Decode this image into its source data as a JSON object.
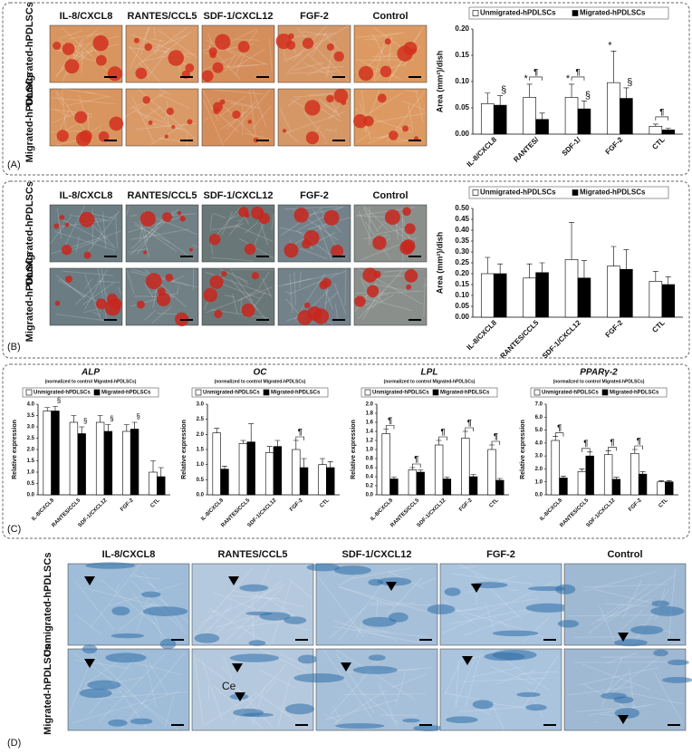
{
  "panels": [
    {
      "label": "(A)",
      "columns": [
        "IL-8/CXCL8",
        "RANTES/CCL5",
        "SDF-1/CXCL12",
        "FGF-2",
        "Control"
      ],
      "rows": [
        "Unmigrated-hPDLSCs",
        "Migrated-hPDLSCs"
      ]
    },
    {
      "label": "(B)",
      "columns": [
        "IL-8/CXCL8",
        "RANTES/CCL5",
        "SDF-1/CXCL12",
        "FGF-2",
        "Control"
      ],
      "rows": [
        "Unmigrated-hPDLSCs",
        "Migrated-hPDLSCs"
      ]
    },
    {
      "label": "(C)"
    },
    {
      "label": "(D)",
      "columns": [
        "IL-8/CXCL8",
        "RANTES/CCL5",
        "SDF-1/CXCL12",
        "FGF-2",
        "Control"
      ],
      "rows": [
        "Unmigrated-hPDLSCs",
        "Migrated-hPDLSCs"
      ],
      "annotation": "Ce"
    }
  ],
  "chart_data": [
    {
      "type": "bar",
      "ylabel": "Area (mm²)/dish",
      "categories": [
        "IL-8/CXCL8",
        "RANTES/",
        "SDF-1/",
        "FGF-2",
        "CTL"
      ],
      "series": [
        {
          "name": "Unmigrated-hPDLSCs",
          "color": "#ffffff",
          "values": [
            0.058,
            0.07,
            0.07,
            0.098,
            0.015
          ],
          "errors": [
            0.02,
            0.025,
            0.025,
            0.06,
            0.004
          ],
          "annotations": [
            null,
            "*",
            "*",
            "*",
            null
          ]
        },
        {
          "name": "Migrated-hPDLSCs",
          "color": "#000000",
          "values": [
            0.055,
            0.028,
            0.048,
            0.068,
            0.008
          ],
          "errors": [
            0.018,
            0.012,
            0.015,
            0.02,
            0.003
          ],
          "annotations": [
            "§",
            null,
            "§",
            "§",
            null
          ]
        }
      ],
      "pair_annotations": [
        null,
        "¶",
        "¶",
        null,
        "¶"
      ],
      "ylim": [
        0,
        0.2
      ],
      "yticks": [
        {
          "value": 0,
          "label": "0.00"
        },
        0.05,
        {
          "value": 0.1,
          "label": "0.10"
        },
        0.15,
        {
          "value": 0.2,
          "label": "0.20"
        }
      ]
    },
    {
      "type": "bar",
      "ylabel": "Area (mm²)/dish",
      "categories": [
        "IL-8/CXCL8",
        "RANTES/CCL5",
        "SDF-1/CXCL12",
        "FGF-2",
        "CTL"
      ],
      "series": [
        {
          "name": "Unmigrated-hPDLSCs",
          "color": "#ffffff",
          "values": [
            0.2,
            0.18,
            0.265,
            0.235,
            0.165
          ],
          "errors": [
            0.075,
            0.065,
            0.17,
            0.09,
            0.045
          ]
        },
        {
          "name": "Migrated-hPDLSCs",
          "color": "#000000",
          "values": [
            0.2,
            0.205,
            0.18,
            0.22,
            0.15
          ],
          "errors": [
            0.045,
            0.045,
            0.08,
            0.09,
            0.035
          ]
        }
      ],
      "ylim": [
        0,
        0.5
      ],
      "yticks": [
        {
          "value": 0,
          "label": "0.00"
        },
        0.05,
        {
          "value": 0.1,
          "label": "0.10"
        },
        0.15,
        {
          "value": 0.2,
          "label": "0.20"
        },
        0.25,
        {
          "value": 0.3,
          "label": "0.30"
        },
        0.35,
        {
          "value": 0.4,
          "label": "0.40"
        },
        0.45,
        {
          "value": 0.5,
          "label": "0.50"
        }
      ]
    },
    {
      "type": "bar",
      "title": "ALP",
      "subtitle": "(normalized to control Migrated-hPDLSCs)",
      "ylabel": "Relative expression",
      "categories": [
        "IL-8/CXCL8",
        "RANTES/CCL5",
        "SDF-1/CXCL12",
        "FGF-2",
        "CTL"
      ],
      "series": [
        {
          "name": "Unmigrated-hPDLSCs",
          "color": "#ffffff",
          "values": [
            3.7,
            3.2,
            3.2,
            2.8,
            1.0
          ],
          "errors": [
            0.15,
            0.3,
            0.3,
            0.3,
            0.5
          ]
        },
        {
          "name": "Migrated-hPDLSCs",
          "color": "#000000",
          "values": [
            3.7,
            2.7,
            2.8,
            2.9,
            0.8
          ],
          "errors": [
            0.2,
            0.3,
            0.3,
            0.3,
            0.4
          ],
          "annotations": [
            "§",
            "§",
            "§",
            "§",
            null
          ]
        }
      ],
      "ylim": [
        0,
        4.0
      ],
      "yticks": [
        {
          "value": 0,
          "label": "0.0"
        },
        0.5,
        {
          "value": 1,
          "label": "1.0"
        },
        1.5,
        {
          "value": 2,
          "label": "2.0"
        },
        2.5,
        {
          "value": 3,
          "label": "3.0"
        },
        3.5,
        {
          "value": 4,
          "label": "4.0"
        }
      ]
    },
    {
      "type": "bar",
      "title": "OC",
      "subtitle": "(normalized to control Migrated-hPDLSCs)",
      "ylabel": "Relative expression",
      "categories": [
        "IL-8/CXCL8",
        "RANTES/CCL5",
        "SDF-1/CXCL12",
        "FGF-2",
        "CTL"
      ],
      "series": [
        {
          "name": "Unmigrated-hPDLSCs",
          "color": "#ffffff",
          "values": [
            2.05,
            1.7,
            1.4,
            1.5,
            1.0
          ],
          "errors": [
            0.15,
            0.1,
            0.2,
            0.3,
            0.2
          ]
        },
        {
          "name": "Migrated-hPDLSCs",
          "color": "#000000",
          "values": [
            0.85,
            1.75,
            1.6,
            0.9,
            0.9
          ],
          "errors": [
            0.1,
            0.6,
            0.2,
            0.3,
            0.2
          ]
        }
      ],
      "pair_annotations": [
        null,
        null,
        null,
        "¶",
        null
      ],
      "ylim": [
        0,
        3.0
      ],
      "yticks": [
        {
          "value": 0,
          "label": "0.0"
        },
        0.5,
        {
          "value": 1,
          "label": "1.0"
        },
        1.5,
        {
          "value": 2,
          "label": "2.0"
        },
        2.5,
        {
          "value": 3,
          "label": "3.0"
        }
      ]
    },
    {
      "type": "bar",
      "title": "LPL",
      "subtitle": "(normalized to control Migrated-hPDLSCs)",
      "ylabel": "Relative expression",
      "categories": [
        "IL-8/CXCL8",
        "RANTES/CCL5",
        "SDF-1/CXCL12",
        "FGF-2",
        "CTL"
      ],
      "series": [
        {
          "name": "Unmigrated-hPDLSCs",
          "color": "#ffffff",
          "values": [
            1.35,
            0.55,
            1.1,
            1.25,
            1.0
          ],
          "errors": [
            0.1,
            0.05,
            0.1,
            0.15,
            0.1
          ]
        },
        {
          "name": "Migrated-hPDLSCs",
          "color": "#000000",
          "values": [
            0.35,
            0.5,
            0.35,
            0.4,
            0.32
          ],
          "errors": [
            0.04,
            0.05,
            0.04,
            0.05,
            0.04
          ]
        }
      ],
      "pair_annotations": [
        "¶",
        "¶",
        "¶",
        "¶",
        "¶"
      ],
      "ylim": [
        0,
        2.0
      ],
      "yticks": [
        {
          "value": 0,
          "label": "0.0"
        },
        0.2,
        0.4,
        0.6,
        0.8,
        {
          "value": 1,
          "label": "1.0"
        },
        1.2,
        1.4,
        1.6,
        1.8,
        {
          "value": 2,
          "label": "2.0"
        }
      ]
    },
    {
      "type": "bar",
      "title": "PPARγ-2",
      "subtitle": "(normalized to control Migrated-hPDLSCs)",
      "ylabel": "Relative expression",
      "categories": [
        "IL-8/CXCL8",
        "RANTES/CCL5",
        "SDF-1/CXCL12",
        "FGF-2",
        "CTL"
      ],
      "series": [
        {
          "name": "Unmigrated-hPDLSCs",
          "color": "#ffffff",
          "values": [
            4.2,
            1.8,
            3.1,
            3.2,
            1.0
          ],
          "errors": [
            0.3,
            0.2,
            0.3,
            0.3,
            0.1
          ]
        },
        {
          "name": "Migrated-hPDLSCs",
          "color": "#000000",
          "values": [
            1.3,
            3.0,
            1.2,
            1.6,
            1.0
          ],
          "errors": [
            0.15,
            0.3,
            0.15,
            0.2,
            0.1
          ]
        }
      ],
      "pair_annotations": [
        "¶",
        "¶",
        "¶",
        "¶",
        null
      ],
      "ylim": [
        0,
        7.0
      ],
      "yticks": [
        {
          "value": 0,
          "label": "0.0"
        },
        {
          "value": 1,
          "label": "1.0"
        },
        {
          "value": 2,
          "label": "2.0"
        },
        {
          "value": 3,
          "label": "3.0"
        },
        {
          "value": 4,
          "label": "4.0"
        },
        {
          "value": 5,
          "label": "5.0"
        },
        {
          "value": 6,
          "label": "6.0"
        },
        {
          "value": 7,
          "label": "7.0"
        }
      ]
    }
  ]
}
